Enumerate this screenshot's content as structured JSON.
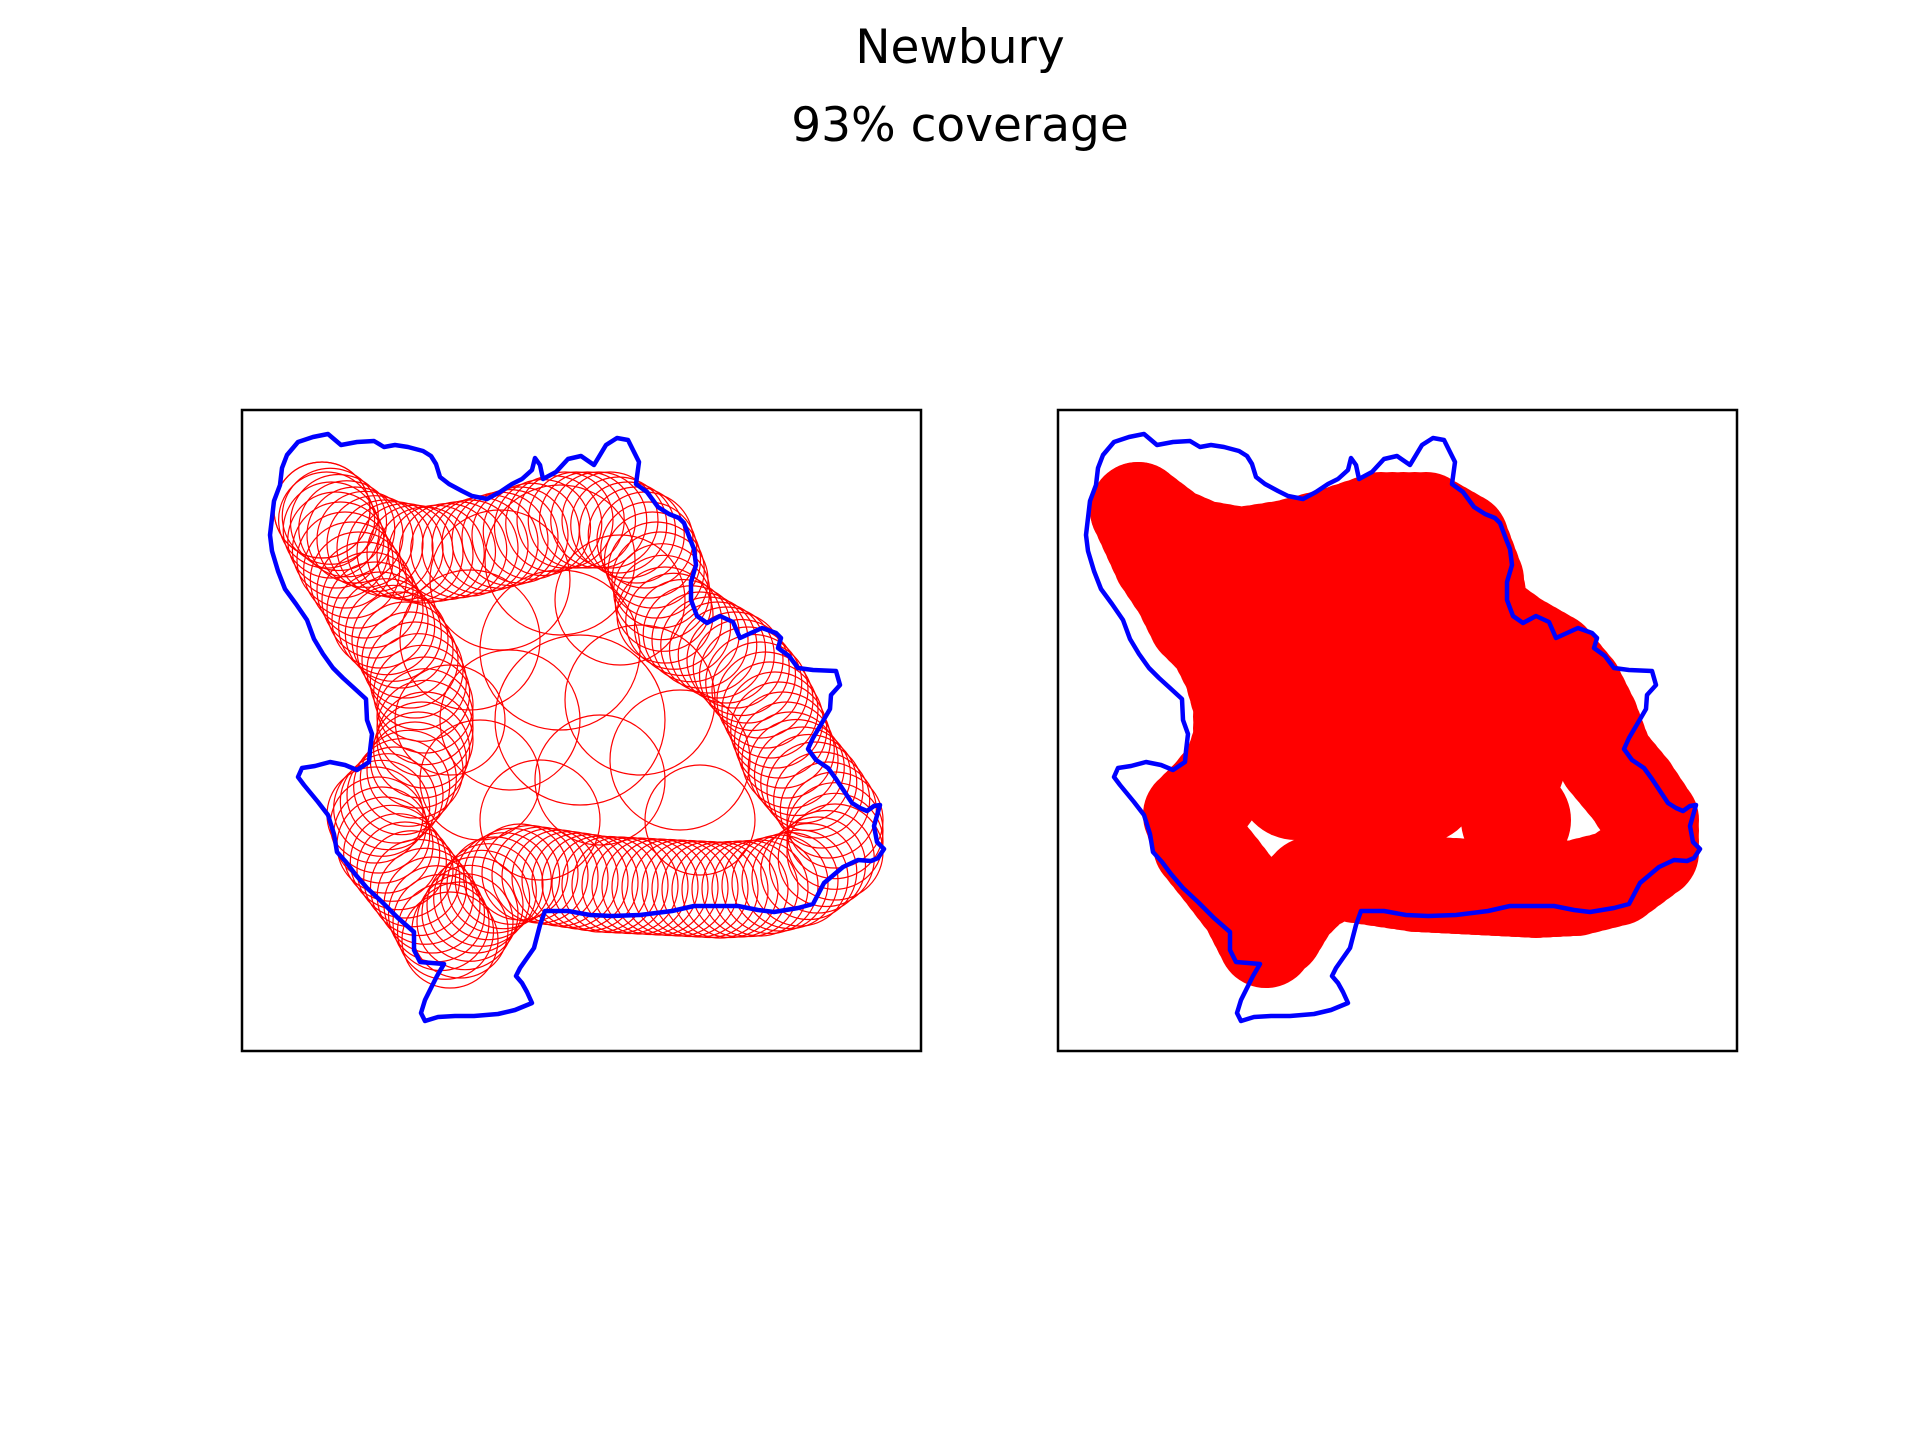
{
  "figure": {
    "title": "Newbury",
    "subtitle": "93% coverage"
  },
  "colors": {
    "boundary": "#0000ff",
    "coverage": "#ff0000",
    "frame": "#000000",
    "background": "#ffffff"
  },
  "panels": [
    {
      "name": "circle-outlines-panel",
      "style": "outline"
    },
    {
      "name": "filled-coverage-panel",
      "style": "filled"
    }
  ]
}
